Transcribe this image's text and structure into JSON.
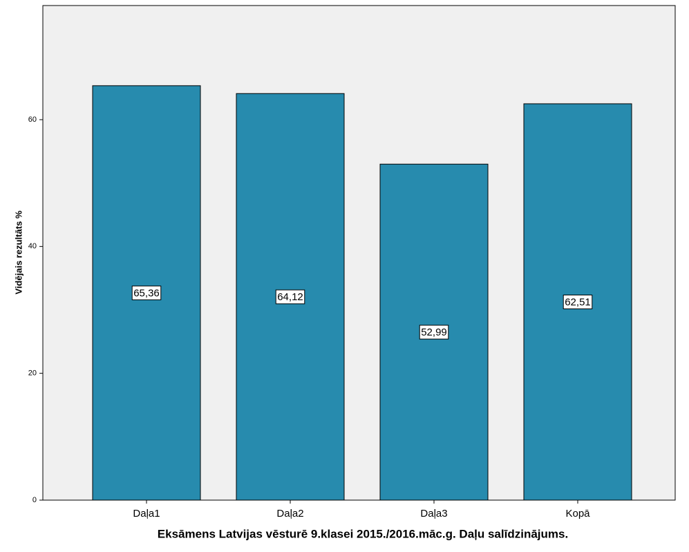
{
  "chart_data": {
    "type": "bar",
    "title": "Eksāmens Latvijas vēsturē 9.klasei 2015./2016.māc.g. Daļu salīdzinājums.",
    "y_label": "Vidējais rezultāts %",
    "categories": [
      "Daļa1",
      "Daļa2",
      "Daļa3",
      "Kopā"
    ],
    "values": [
      65.36,
      64.12,
      52.99,
      62.51
    ],
    "value_labels": [
      "65,36",
      "64,12",
      "52,99",
      "62,51"
    ],
    "color": "#278bae",
    "ylim": [
      0,
      78
    ],
    "yticks": [
      0,
      20,
      40,
      60
    ],
    "grid": false
  }
}
